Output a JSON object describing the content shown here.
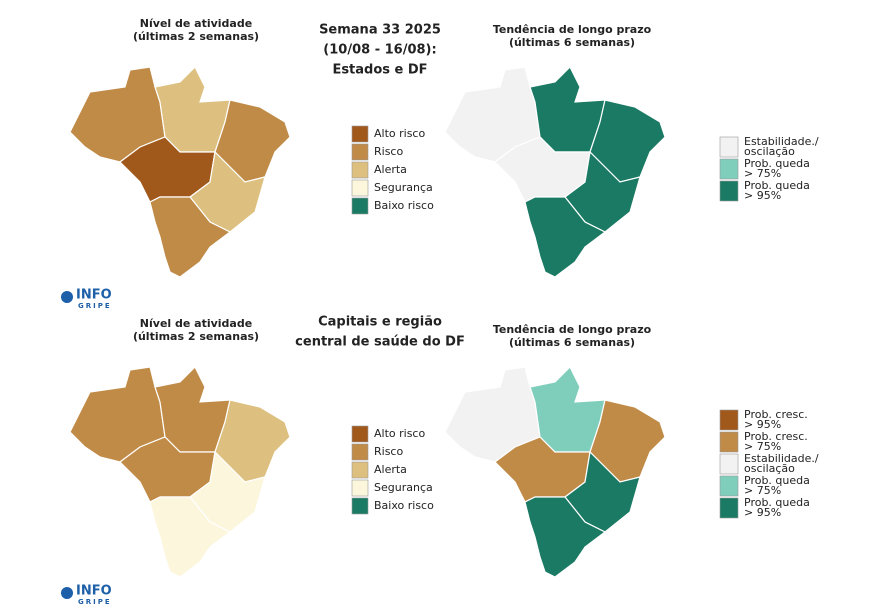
{
  "panels": [
    {
      "center_title": [
        "Semana 33 2025",
        "(10/08 - 16/08):",
        "Estados e DF"
      ],
      "left_title": [
        "Nível de atividade",
        "(últimas 2 semanas)"
      ],
      "right_title": [
        "Tendência de longo prazo",
        "(últimas 6 semanas)"
      ],
      "activity_legend": [
        {
          "label": [
            "Alto risco"
          ],
          "color": "#a0581b"
        },
        {
          "label": [
            "Risco"
          ],
          "color": "#c08a47"
        },
        {
          "label": [
            "Alerta"
          ],
          "color": "#ddc07f"
        },
        {
          "label": [
            "Segurança"
          ],
          "color": "#fbf6dc"
        },
        {
          "label": [
            "Baixo risco"
          ],
          "color": "#1a7a64"
        }
      ],
      "trend_legend": [
        {
          "label": [
            "Estabilidade./",
            "oscilação"
          ],
          "color": "#f2f2f2"
        },
        {
          "label": [
            "Prob. queda",
            "> 75%"
          ],
          "color": "#7fcdbb"
        },
        {
          "label": [
            "Prob. queda",
            "> 95%"
          ],
          "color": "#1a7a64"
        }
      ],
      "logo": [
        "INFO",
        "GRIPE"
      ]
    },
    {
      "center_title": [
        "Capitais e região",
        "central de saúde do DF"
      ],
      "left_title": [
        "Nível de atividade",
        "(últimas 2 semanas)"
      ],
      "right_title": [
        "Tendência de longo prazo",
        "(últimas 6 semanas)"
      ],
      "activity_legend": [
        {
          "label": [
            "Alto risco"
          ],
          "color": "#a0581b"
        },
        {
          "label": [
            "Risco"
          ],
          "color": "#c08a47"
        },
        {
          "label": [
            "Alerta"
          ],
          "color": "#ddc07f"
        },
        {
          "label": [
            "Segurança"
          ],
          "color": "#fbf6dc"
        },
        {
          "label": [
            "Baixo risco"
          ],
          "color": "#1a7a64"
        }
      ],
      "trend_legend": [
        {
          "label": [
            "Prob. cresc.",
            "> 95%"
          ],
          "color": "#a0581b"
        },
        {
          "label": [
            "Prob. cresc.",
            "> 75%"
          ],
          "color": "#c08a47"
        },
        {
          "label": [
            "Estabilidade./",
            "oscilação"
          ],
          "color": "#f2f2f2"
        },
        {
          "label": [
            "Prob. queda",
            "> 75%"
          ],
          "color": "#7fcdbb"
        },
        {
          "label": [
            "Prob. queda",
            "> 95%"
          ],
          "color": "#1a7a64"
        }
      ],
      "logo": [
        "INFO",
        "GRIPE"
      ]
    }
  ]
}
